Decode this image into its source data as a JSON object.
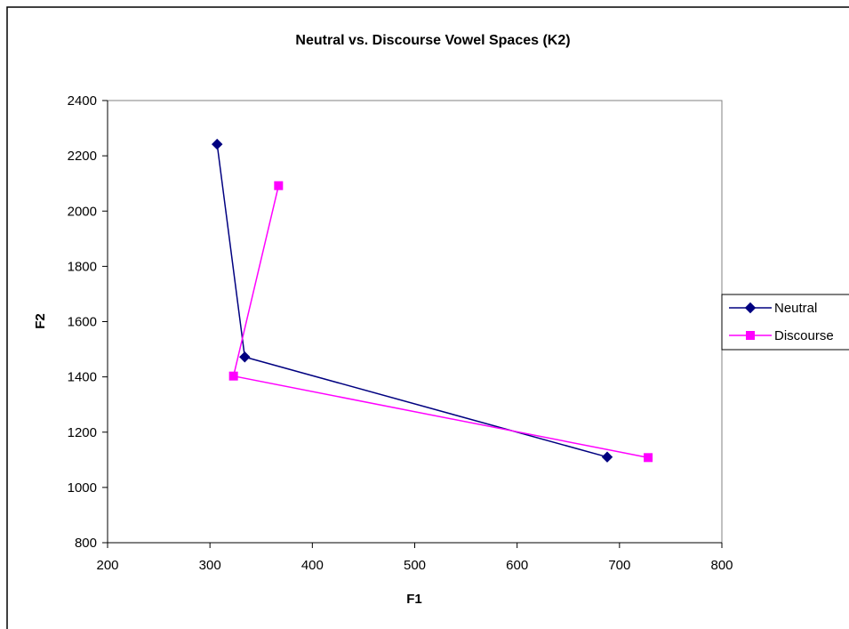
{
  "chart_data": {
    "type": "scatter",
    "title": "Neutral vs. Discourse Vowel Spaces (K2)",
    "xlabel": "F1",
    "ylabel": "F2",
    "xlim": [
      200,
      800
    ],
    "ylim": [
      800,
      2400
    ],
    "xticks": [
      200,
      300,
      400,
      500,
      600,
      700,
      800
    ],
    "yticks": [
      800,
      1000,
      1200,
      1400,
      1600,
      1800,
      2000,
      2200,
      2400
    ],
    "grid": false,
    "legend_position": "right",
    "series": [
      {
        "name": "Neutral",
        "color": "#000080",
        "marker": "diamond",
        "x": [
          307,
          334,
          688
        ],
        "y": [
          2242,
          1472,
          1110
        ]
      },
      {
        "name": "Discourse",
        "color": "#FF00FF",
        "marker": "square",
        "x": [
          367,
          323,
          728
        ],
        "y": [
          2092,
          1403,
          1108
        ]
      }
    ]
  }
}
